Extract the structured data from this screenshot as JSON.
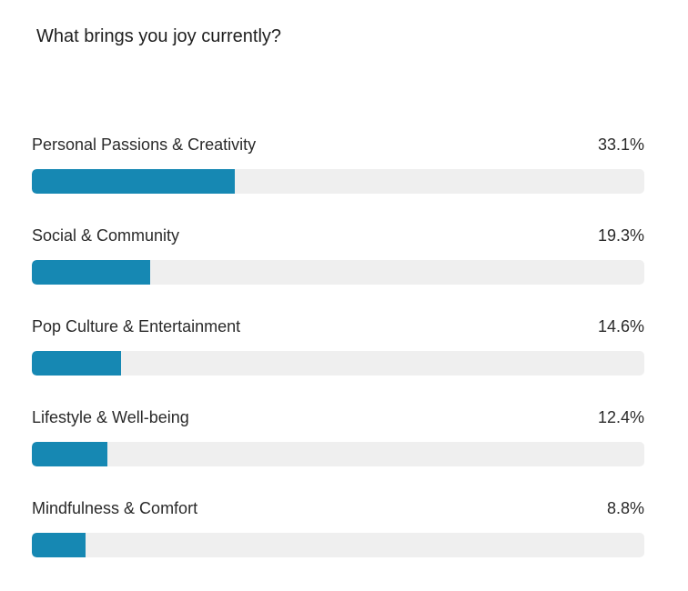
{
  "chart_data": {
    "type": "bar",
    "orientation": "horizontal",
    "title": "What brings you joy currently?",
    "categories": [
      "Personal Passions & Creativity",
      "Social & Community",
      "Pop Culture & Entertainment",
      "Lifestyle & Well-being",
      "Mindfulness & Comfort"
    ],
    "values": [
      33.1,
      19.3,
      14.6,
      12.4,
      8.8
    ],
    "value_labels": [
      "33.1%",
      "19.3%",
      "14.6%",
      "12.4%",
      "8.8%"
    ],
    "xlim": [
      0,
      100
    ],
    "unit": "%",
    "grid": false,
    "legend": "none",
    "colors": {
      "bar": "#1688b3",
      "track": "#efefef"
    }
  }
}
